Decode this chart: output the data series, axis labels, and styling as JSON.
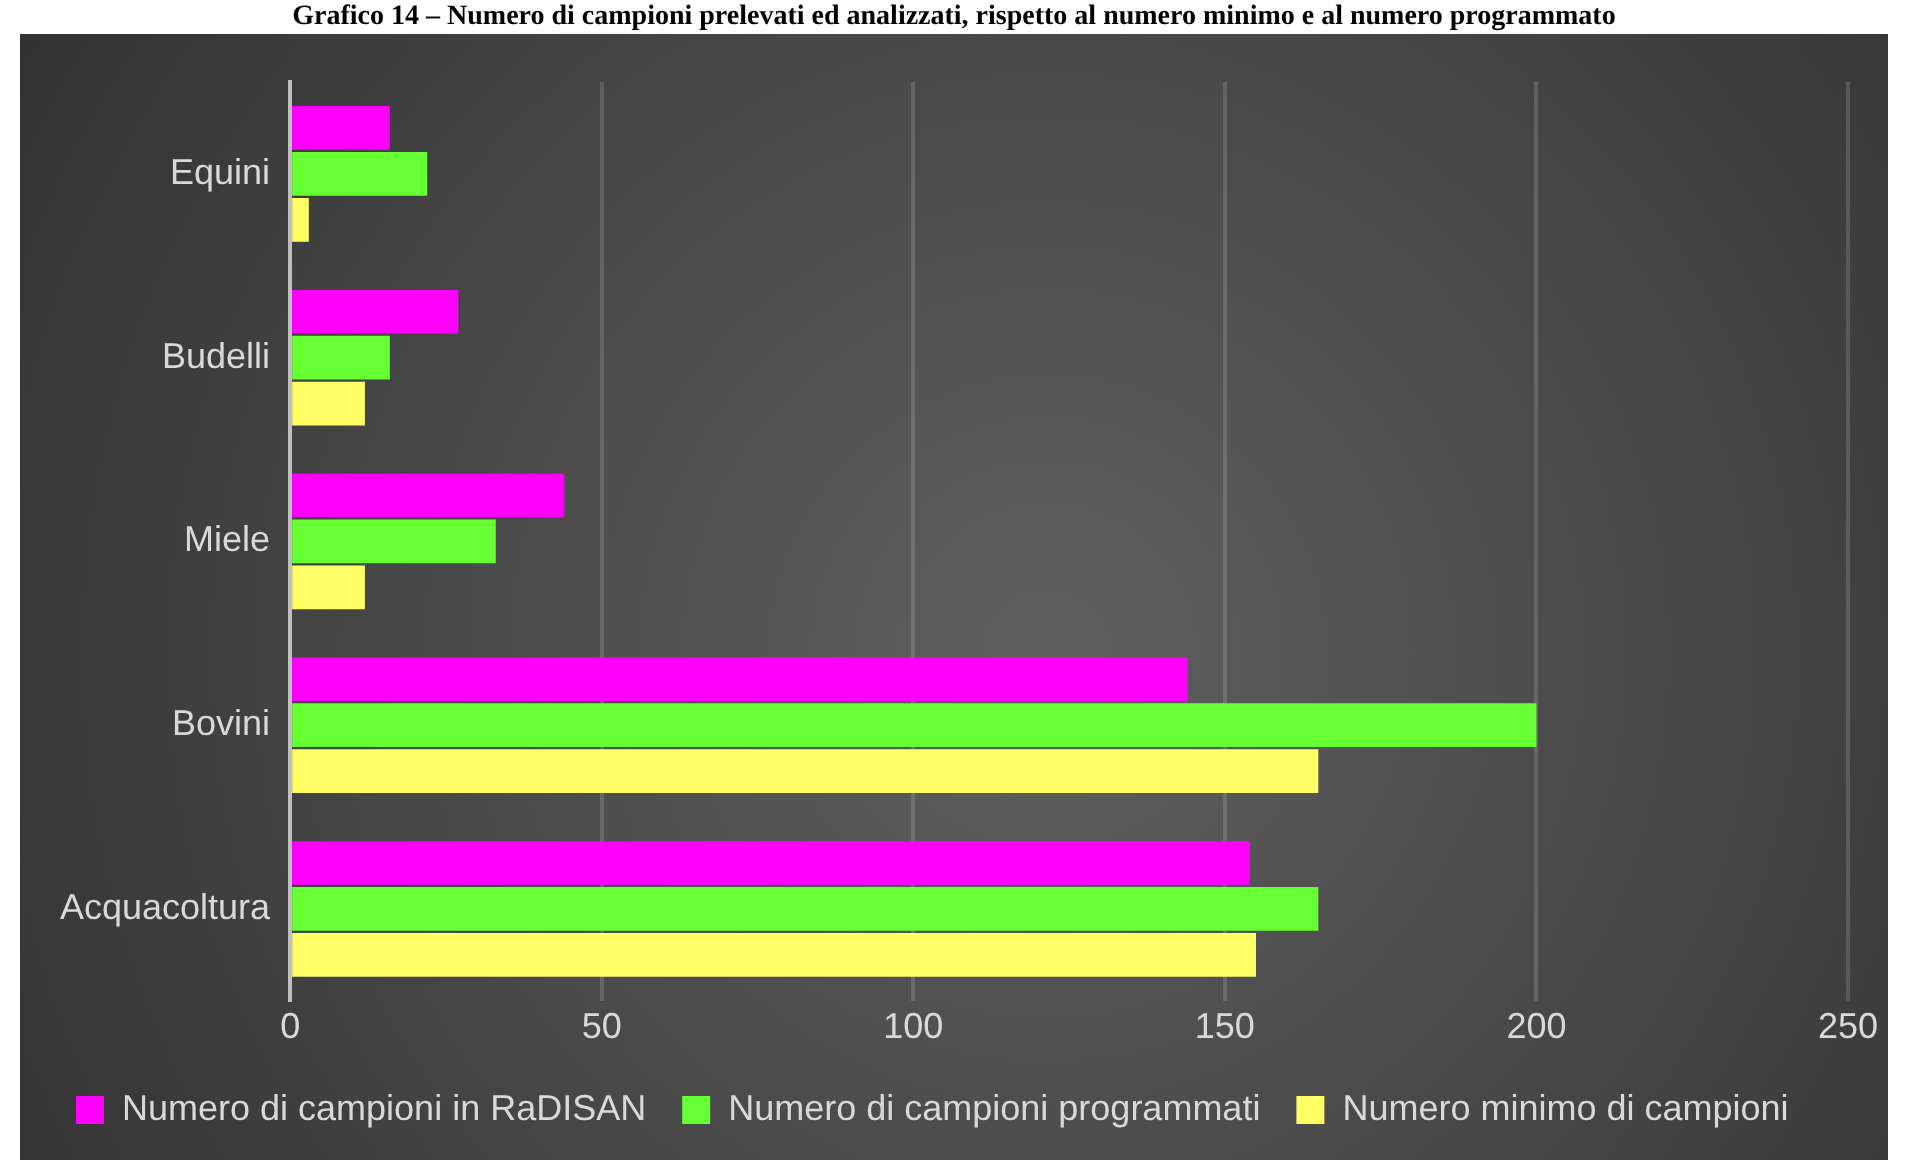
{
  "chart_data": {
    "type": "bar",
    "orientation": "horizontal",
    "title": "Grafico 14 – Numero di campioni prelevati ed analizzati, rispetto al numero minimo e al numero programmato",
    "categories": [
      "Equini",
      "Budelli",
      "Miele",
      "Bovini",
      "Acquacoltura"
    ],
    "series": [
      {
        "name": "Numero di campioni in RaDISAN",
        "color": "#ff00ff",
        "values": [
          16,
          27,
          44,
          144,
          154
        ]
      },
      {
        "name": "Numero di campioni programmati",
        "color": "#66ff33",
        "values": [
          22,
          16,
          33,
          200,
          165
        ]
      },
      {
        "name": "Numero minimo di campioni",
        "color": "#ffff66",
        "values": [
          3,
          12,
          12,
          165,
          155
        ]
      }
    ],
    "xlim": [
      0,
      250
    ],
    "xticks": [
      0,
      50,
      100,
      150,
      200,
      250
    ],
    "grid": "x",
    "legend": "bottom"
  }
}
